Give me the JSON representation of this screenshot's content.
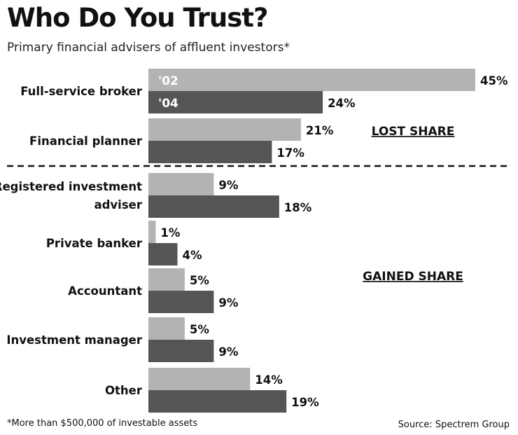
{
  "chart_data": {
    "type": "bar",
    "orientation": "horizontal",
    "title": "Who Do You Trust?",
    "subtitle": "Primary financial advisers of affluent investors*",
    "categories": [
      [
        "Full-service broker"
      ],
      [
        "Financial planner"
      ],
      [
        "Registered investment",
        "adviser"
      ],
      [
        "Private banker"
      ],
      [
        "Accountant"
      ],
      [
        "Investment manager"
      ],
      [
        "Other"
      ]
    ],
    "series": [
      {
        "name": "'02",
        "color": "#b3b3b3",
        "values": [
          45,
          21,
          9,
          1,
          5,
          5,
          14
        ]
      },
      {
        "name": "'04",
        "color": "#555555",
        "values": [
          24,
          17,
          18,
          4,
          9,
          9,
          19
        ]
      }
    ],
    "value_suffix": "%",
    "xlim": [
      0,
      100
    ],
    "grid": false,
    "legend": "inside first bars",
    "annotations": [
      "LOST SHARE",
      "GAINED SHARE"
    ],
    "footnote": "*More than $500,000 of investable assets",
    "source": "Source: Spectrem Group"
  }
}
